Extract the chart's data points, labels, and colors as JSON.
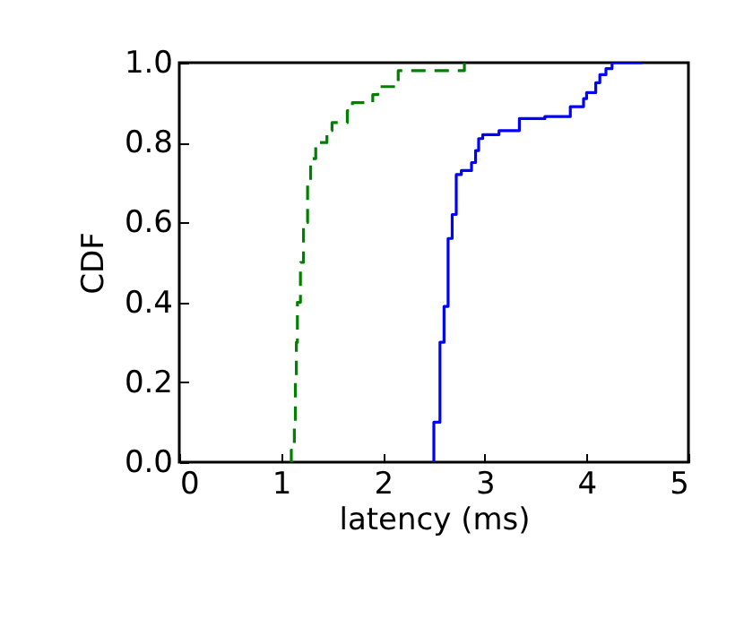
{
  "chart_data": {
    "type": "step",
    "xlabel": "latency (ms)",
    "ylabel": "CDF",
    "xlim": [
      0,
      5
    ],
    "xticks": [
      0,
      1,
      2,
      3,
      4,
      5
    ],
    "ylim": [
      0,
      1
    ],
    "yticks": [
      {
        "value": 0,
        "label": "0.0"
      },
      {
        "value": 0.2,
        "label": "0.2"
      },
      {
        "value": 0.4,
        "label": "0.4"
      },
      {
        "value": 0.6,
        "label": "0.6"
      },
      {
        "value": 0.8,
        "label": "0.8"
      },
      {
        "value": 1,
        "label": "1.0"
      }
    ],
    "grid": false,
    "series": [
      {
        "color": "#0000ff",
        "line_style": "solid",
        "x": [
          2.5,
          2.5,
          2.56,
          2.6,
          2.64,
          2.68,
          2.72,
          2.77,
          2.87,
          2.91,
          2.94,
          2.98,
          3.14,
          3.34,
          3.59,
          3.84,
          3.97,
          4.0,
          4.09,
          4.13,
          4.19,
          4.25,
          4.55
        ],
        "values": [
          0,
          0.1,
          0.3,
          0.39,
          0.56,
          0.62,
          0.72,
          0.73,
          0.75,
          0.78,
          0.81,
          0.82,
          0.83,
          0.86,
          0.865,
          0.89,
          0.91,
          0.925,
          0.95,
          0.97,
          0.985,
          1.0,
          1.0
        ]
      },
      {
        "color": "#008000",
        "line_style": "dashed",
        "x": [
          1.09,
          1.1,
          1.13,
          1.14,
          1.15,
          1.16,
          1.19,
          1.22,
          1.26,
          1.29,
          1.34,
          1.45,
          1.5,
          1.65,
          1.7,
          1.9,
          1.95,
          2.15,
          2.8
        ],
        "values": [
          0,
          0.03,
          0.1,
          0.2,
          0.3,
          0.4,
          0.5,
          0.6,
          0.7,
          0.76,
          0.8,
          0.83,
          0.85,
          0.88,
          0.9,
          0.92,
          0.94,
          0.98,
          1.0
        ]
      }
    ]
  }
}
